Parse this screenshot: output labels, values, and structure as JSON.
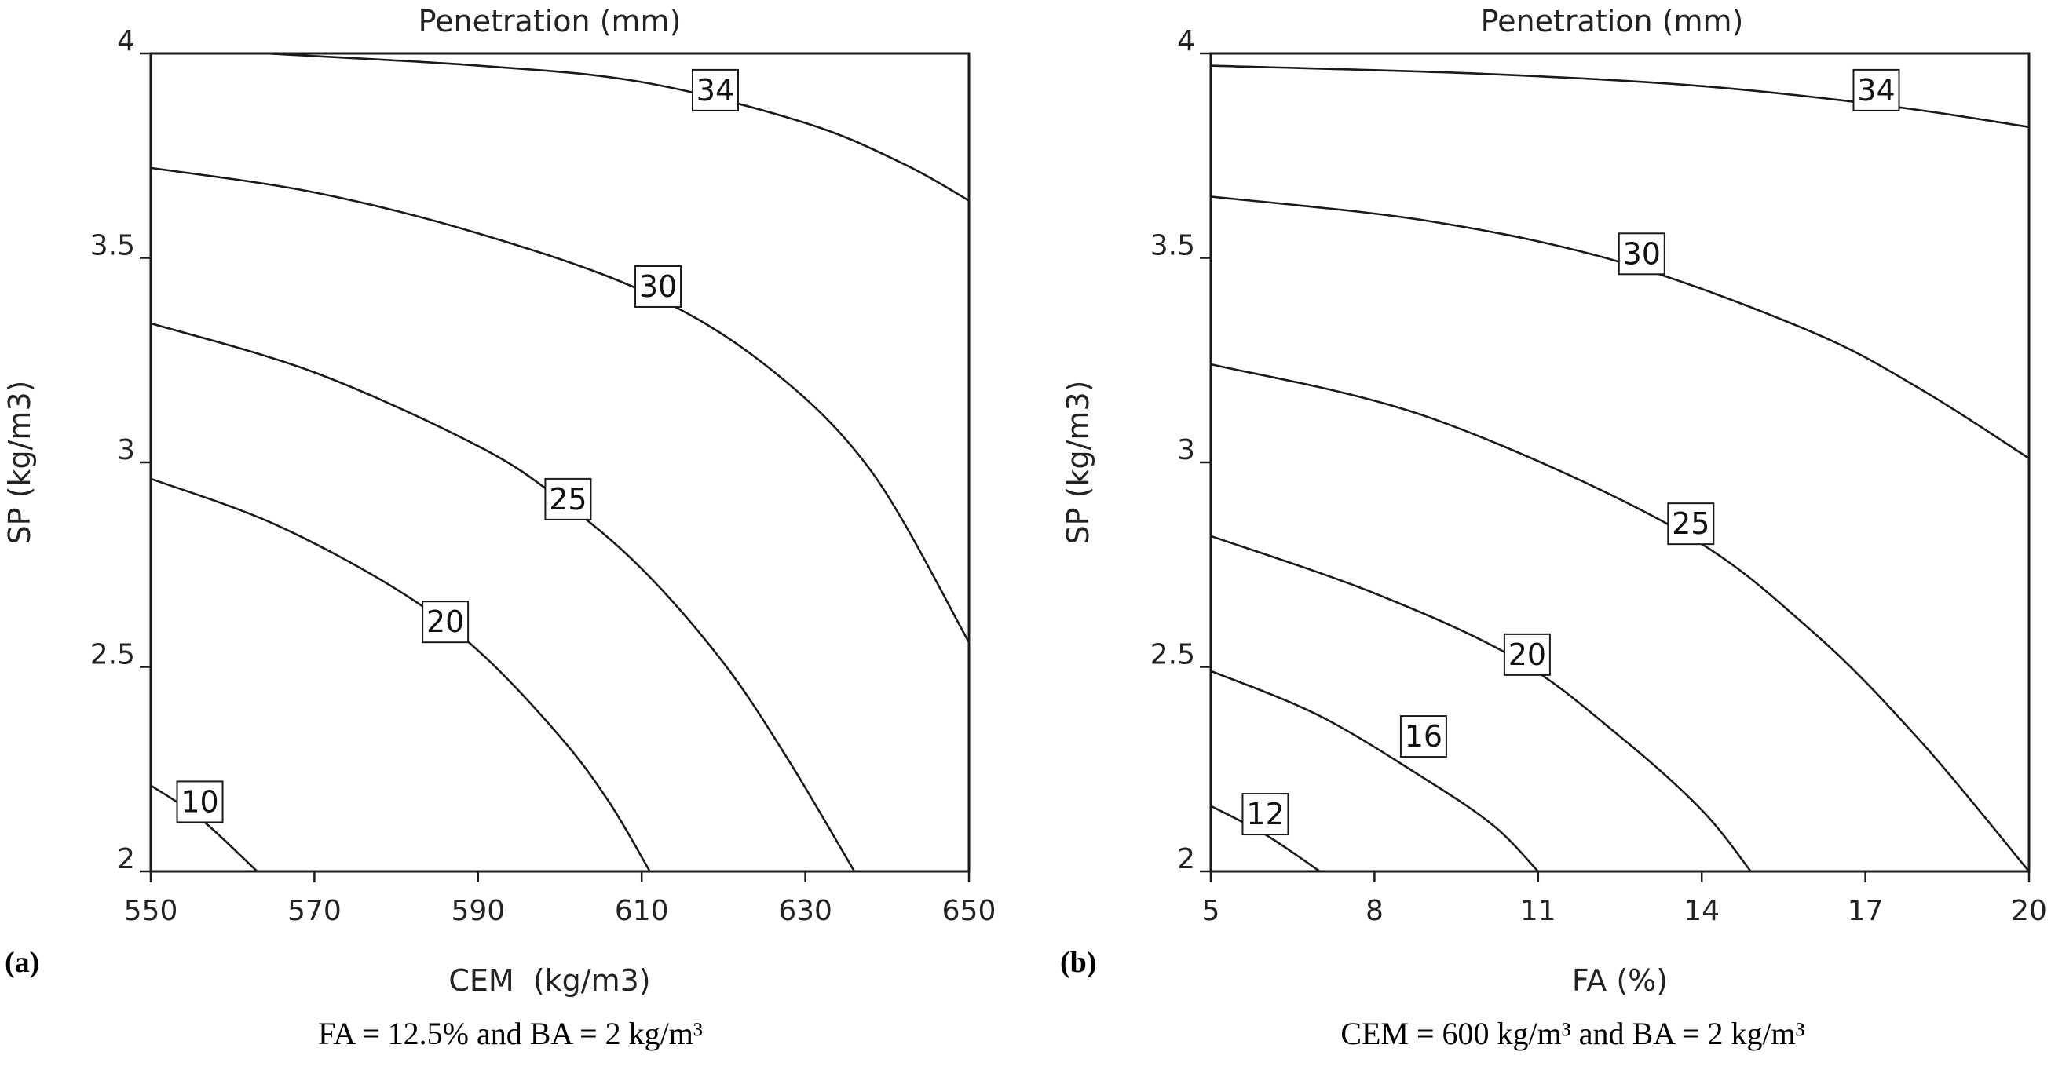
{
  "chart_data": [
    {
      "type": "contour",
      "panel_label": "(a)",
      "title": "Penetration (mm)",
      "xlabel": "CEM  (kg/m3)",
      "ylabel": "SP (kg/m3)",
      "xlim": [
        550,
        650
      ],
      "ylim": [
        2,
        4
      ],
      "x_ticks": [
        "550",
        "570",
        "590",
        "610",
        "630",
        "650"
      ],
      "y_ticks": [
        "2",
        "2.5",
        "3",
        "3.5",
        "4"
      ],
      "caption": "FA = 12.5% and BA = 2 kg/m³",
      "contours": [
        {
          "level": "10",
          "points": [
            [
              550,
              2.21
            ],
            [
              556,
              2.13
            ],
            [
              563,
              2.0
            ]
          ],
          "label_at": [
            556,
            2.17
          ]
        },
        {
          "level": "20",
          "points": [
            [
              550,
              2.96
            ],
            [
              565,
              2.85
            ],
            [
              580,
              2.69
            ],
            [
              590,
              2.54
            ],
            [
              600,
              2.33
            ],
            [
              606,
              2.17
            ],
            [
              611,
              2.0
            ]
          ],
          "label_at": [
            586,
            2.61
          ]
        },
        {
          "level": "25",
          "points": [
            [
              550,
              3.34
            ],
            [
              570,
              3.22
            ],
            [
              590,
              3.04
            ],
            [
              600,
              2.91
            ],
            [
              610,
              2.74
            ],
            [
              620,
              2.51
            ],
            [
              628,
              2.27
            ],
            [
              636,
              2.0
            ]
          ],
          "label_at": [
            601,
            2.91
          ]
        },
        {
          "level": "30",
          "points": [
            [
              550,
              3.72
            ],
            [
              570,
              3.66
            ],
            [
              590,
              3.56
            ],
            [
              610,
              3.42
            ],
            [
              625,
              3.24
            ],
            [
              638,
              2.98
            ],
            [
              650,
              2.56
            ]
          ],
          "label_at": [
            612,
            3.43
          ]
        },
        {
          "level": "34",
          "points": [
            [
              564,
              4.0
            ],
            [
              590,
              3.97
            ],
            [
              610,
              3.93
            ],
            [
              630,
              3.83
            ],
            [
              642,
              3.73
            ],
            [
              650,
              3.64
            ]
          ],
          "label_at": [
            619,
            3.91
          ]
        }
      ]
    },
    {
      "type": "contour",
      "panel_label": "(b)",
      "title": "Penetration (mm)",
      "xlabel": "FA (%)",
      "ylabel": "SP (kg/m3)",
      "xlim": [
        5,
        20
      ],
      "ylim": [
        2,
        4
      ],
      "x_ticks": [
        "5",
        "8",
        "11",
        "14",
        "17",
        "20"
      ],
      "y_ticks": [
        "2",
        "2.5",
        "3",
        "3.5",
        "4"
      ],
      "caption": "CEM = 600 kg/m³ and BA = 2 kg/m³",
      "contours": [
        {
          "level": "12",
          "points": [
            [
              5,
              2.16
            ],
            [
              6,
              2.09
            ],
            [
              7,
              2.0
            ]
          ],
          "label_at": [
            6.0,
            2.14
          ]
        },
        {
          "level": "16",
          "points": [
            [
              5,
              2.49
            ],
            [
              7,
              2.38
            ],
            [
              9,
              2.22
            ],
            [
              10.2,
              2.11
            ],
            [
              11,
              2.0
            ]
          ],
          "label_at": [
            8.9,
            2.33
          ]
        },
        {
          "level": "20",
          "points": [
            [
              5,
              2.82
            ],
            [
              8,
              2.68
            ],
            [
              10.6,
              2.52
            ],
            [
              12.5,
              2.33
            ],
            [
              14,
              2.15
            ],
            [
              14.9,
              2.0
            ]
          ],
          "label_at": [
            10.8,
            2.53
          ]
        },
        {
          "level": "25",
          "points": [
            [
              5,
              3.24
            ],
            [
              9,
              3.11
            ],
            [
              13.5,
              2.84
            ],
            [
              16,
              2.59
            ],
            [
              18,
              2.32
            ],
            [
              20,
              2.0
            ]
          ],
          "label_at": [
            13.8,
            2.85
          ]
        },
        {
          "level": "30",
          "points": [
            [
              5,
              3.65
            ],
            [
              9,
              3.59
            ],
            [
              12.5,
              3.49
            ],
            [
              16,
              3.32
            ],
            [
              18,
              3.18
            ],
            [
              20,
              3.01
            ]
          ],
          "label_at": [
            12.9,
            3.51
          ]
        },
        {
          "level": "34",
          "points": [
            [
              5,
              3.97
            ],
            [
              10,
              3.95
            ],
            [
              14,
              3.92
            ],
            [
              17.5,
              3.87
            ],
            [
              20,
              3.82
            ]
          ],
          "label_at": [
            17.2,
            3.91
          ]
        }
      ]
    }
  ]
}
